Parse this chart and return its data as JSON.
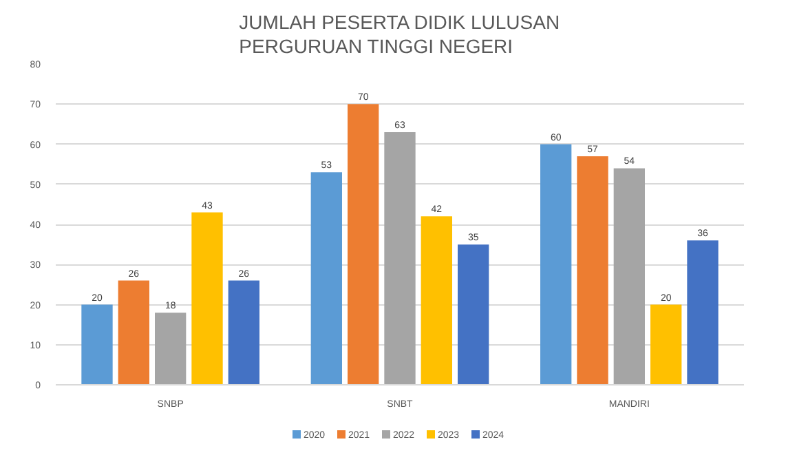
{
  "chart_data": {
    "type": "bar",
    "title": "JUMLAH PESERTA DIDIK LULUSAN\nPERGURUAN TINGGI NEGERI",
    "categories": [
      "SNBP",
      "SNBT",
      "MANDIRI"
    ],
    "series": [
      {
        "name": "2020",
        "color": "#5b9bd5",
        "values": [
          20,
          53,
          60
        ]
      },
      {
        "name": "2021",
        "color": "#ed7d31",
        "values": [
          26,
          70,
          57
        ]
      },
      {
        "name": "2022",
        "color": "#a5a5a5",
        "values": [
          18,
          63,
          54
        ]
      },
      {
        "name": "2023",
        "color": "#ffc000",
        "values": [
          43,
          42,
          20
        ]
      },
      {
        "name": "2024",
        "color": "#4472c4",
        "values": [
          26,
          35,
          36
        ]
      }
    ],
    "ylim": [
      0,
      80
    ],
    "yticks": [
      0,
      10,
      20,
      30,
      40,
      50,
      60,
      70,
      80
    ],
    "grid": "y",
    "legend": "bottom",
    "data_labels": true
  }
}
